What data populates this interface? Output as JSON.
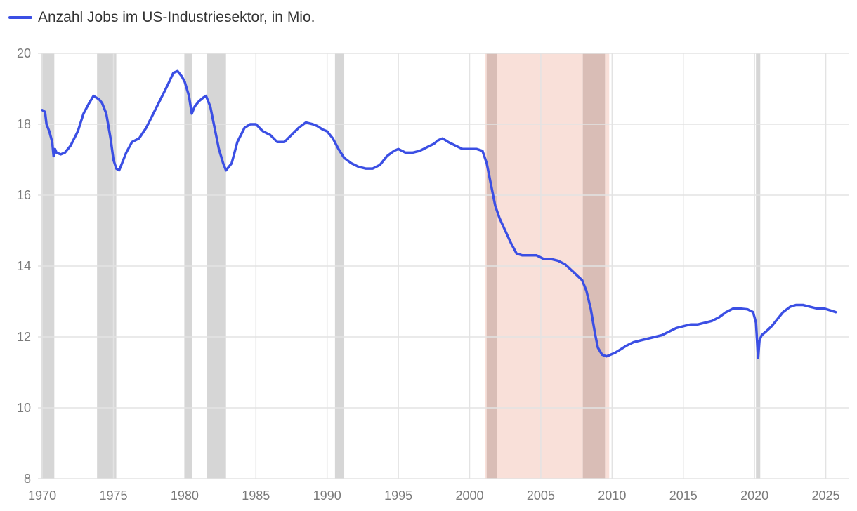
{
  "chart_data": {
    "type": "line",
    "title": "",
    "xlabel": "",
    "ylabel": "",
    "xlim": [
      1969.7,
      2026.6
    ],
    "ylim": [
      8,
      20
    ],
    "x_ticks": [
      "1970",
      "1975",
      "1980",
      "1985",
      "1990",
      "1995",
      "2000",
      "2005",
      "2010",
      "2015",
      "2020",
      "2025"
    ],
    "y_ticks": [
      "8",
      "10",
      "12",
      "14",
      "16",
      "18",
      "20"
    ],
    "grid": true,
    "legend": "top-left",
    "colors": {
      "line": "#3b4fe4",
      "recession": "#d6d6d6",
      "highlight": "#f9e0d9",
      "overlap": "#d9bdb6",
      "grid": "#e3e3e3"
    },
    "recessions": [
      [
        1969.95,
        1970.85
      ],
      [
        1973.85,
        1975.2
      ],
      [
        1980.05,
        1980.5
      ],
      [
        1981.55,
        1982.9
      ],
      [
        1990.55,
        1991.2
      ],
      [
        2001.2,
        2001.9
      ],
      [
        2007.95,
        2009.5
      ],
      [
        2020.1,
        2020.4
      ]
    ],
    "highlight_band": [
      2001.1,
      2009.8
    ],
    "series": [
      {
        "name": "Anzahl Jobs im US-Industriesektor, in Mio.",
        "x": [
          1970.0,
          1970.2,
          1970.3,
          1970.5,
          1970.7,
          1970.8,
          1970.9,
          1971.0,
          1971.3,
          1971.6,
          1972.0,
          1972.5,
          1972.9,
          1973.3,
          1973.6,
          1974.0,
          1974.2,
          1974.5,
          1974.8,
          1975.0,
          1975.2,
          1975.4,
          1975.6,
          1975.9,
          1976.3,
          1976.8,
          1977.3,
          1977.8,
          1978.3,
          1978.8,
          1979.2,
          1979.5,
          1979.8,
          1980.0,
          1980.3,
          1980.5,
          1980.7,
          1981.0,
          1981.3,
          1981.5,
          1981.8,
          1982.1,
          1982.4,
          1982.7,
          1982.9,
          1983.3,
          1983.7,
          1984.2,
          1984.6,
          1985.0,
          1985.5,
          1986.0,
          1986.5,
          1987.0,
          1987.5,
          1988.0,
          1988.5,
          1989.0,
          1989.3,
          1989.7,
          1990.0,
          1990.4,
          1990.8,
          1991.2,
          1991.7,
          1992.2,
          1992.7,
          1993.2,
          1993.7,
          1994.2,
          1994.7,
          1995.0,
          1995.5,
          1996.0,
          1996.5,
          1997.0,
          1997.5,
          1997.8,
          1998.1,
          1998.5,
          1999.0,
          1999.5,
          2000.0,
          2000.5,
          2000.9,
          2001.2,
          2001.5,
          2001.8,
          2002.1,
          2002.5,
          2002.9,
          2003.3,
          2003.7,
          2004.2,
          2004.7,
          2005.2,
          2005.7,
          2006.2,
          2006.7,
          2007.1,
          2007.5,
          2007.9,
          2008.2,
          2008.5,
          2008.8,
          2009.0,
          2009.3,
          2009.6,
          2009.9,
          2010.2,
          2010.6,
          2011.0,
          2011.5,
          2012.0,
          2012.5,
          2013.0,
          2013.5,
          2014.0,
          2014.5,
          2015.0,
          2015.5,
          2016.0,
          2016.5,
          2017.0,
          2017.5,
          2018.0,
          2018.5,
          2019.0,
          2019.5,
          2019.9,
          2020.1,
          2020.25,
          2020.35,
          2020.5,
          2020.8,
          2021.2,
          2021.6,
          2022.0,
          2022.5,
          2022.9,
          2023.4,
          2023.9,
          2024.4,
          2024.9,
          2025.3,
          2025.7
        ],
        "y": [
          18.4,
          18.35,
          18.0,
          17.8,
          17.5,
          17.1,
          17.3,
          17.2,
          17.15,
          17.2,
          17.4,
          17.8,
          18.3,
          18.6,
          18.8,
          18.7,
          18.6,
          18.3,
          17.6,
          17.0,
          16.75,
          16.7,
          16.9,
          17.2,
          17.5,
          17.6,
          17.9,
          18.3,
          18.7,
          19.1,
          19.45,
          19.5,
          19.35,
          19.2,
          18.8,
          18.3,
          18.5,
          18.65,
          18.75,
          18.8,
          18.5,
          17.9,
          17.3,
          16.9,
          16.7,
          16.9,
          17.5,
          17.9,
          18.0,
          18.0,
          17.8,
          17.7,
          17.5,
          17.5,
          17.7,
          17.9,
          18.05,
          18.0,
          17.95,
          17.85,
          17.8,
          17.6,
          17.3,
          17.05,
          16.9,
          16.8,
          16.75,
          16.75,
          16.85,
          17.1,
          17.25,
          17.3,
          17.2,
          17.2,
          17.25,
          17.35,
          17.45,
          17.55,
          17.6,
          17.5,
          17.4,
          17.3,
          17.3,
          17.3,
          17.25,
          16.9,
          16.3,
          15.7,
          15.35,
          15.0,
          14.65,
          14.35,
          14.3,
          14.3,
          14.3,
          14.2,
          14.2,
          14.15,
          14.05,
          13.9,
          13.75,
          13.6,
          13.3,
          12.8,
          12.1,
          11.7,
          11.5,
          11.45,
          11.5,
          11.55,
          11.65,
          11.75,
          11.85,
          11.9,
          11.95,
          12.0,
          12.05,
          12.15,
          12.25,
          12.3,
          12.35,
          12.35,
          12.4,
          12.45,
          12.55,
          12.7,
          12.8,
          12.8,
          12.78,
          12.7,
          12.4,
          11.4,
          11.9,
          12.05,
          12.15,
          12.3,
          12.5,
          12.7,
          12.85,
          12.9,
          12.9,
          12.85,
          12.8,
          12.8,
          12.75,
          12.7
        ]
      }
    ]
  }
}
